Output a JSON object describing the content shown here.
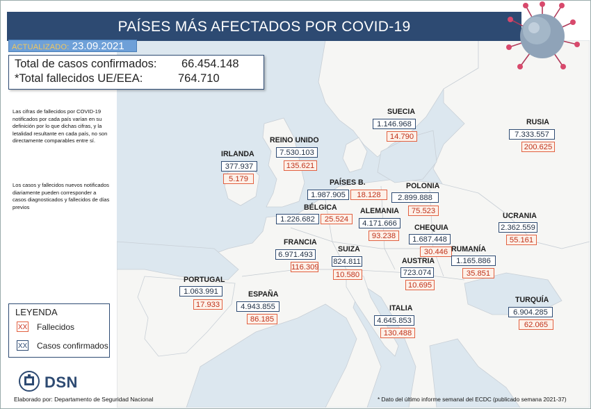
{
  "header": {
    "title": "PAÍSES MÁS AFECTADOS POR COVID-19"
  },
  "updated": {
    "label": "ACTUALIZADO:",
    "date": "23.09.2021"
  },
  "totals": {
    "cases_label": "Total de casos confirmados:",
    "cases_value": "66.454.148",
    "deaths_label": "*Total fallecidos UE/EEA:",
    "deaths_value": "764.710"
  },
  "notes": {
    "note1": "Las cifras de fallecidos por COVID-19 notificados por cada país varían en su definición por lo que dichas cifras, y la letalidad resultante en cada país, no son directamente comparables entre sí.",
    "note2": "Los casos y fallecidos nuevos notificados diariamente pueden corresponder a casos diagnosticados y fallecidos de días previos"
  },
  "legend": {
    "title": "LEYENDA",
    "sample": "XX",
    "deaths_label": "Fallecidos",
    "cases_label": "Casos confirmados"
  },
  "countries": {
    "suecia": {
      "name": "SUECIA",
      "cases": "1.146.968",
      "deaths": "14.790"
    },
    "rusia": {
      "name": "RUSIA",
      "cases": "7.333.557",
      "deaths": "200.625"
    },
    "reino_unido": {
      "name": "REINO UNIDO",
      "cases": "7.530.103",
      "deaths": "135.621"
    },
    "irlanda": {
      "name": "IRLANDA",
      "cases": "377.937",
      "deaths": "5.179"
    },
    "paises_bajos": {
      "name": "PAÍSES B.",
      "cases": "1.987.905",
      "deaths": "18.128"
    },
    "polonia": {
      "name": "POLONIA",
      "cases": "2.899.888",
      "deaths": "75.523"
    },
    "belgica": {
      "name": "BÉLGICA",
      "cases": "1.226.682",
      "deaths": "25.524"
    },
    "alemania": {
      "name": "ALEMANIA",
      "cases": "4.171.666",
      "deaths": "93.238"
    },
    "ucrania": {
      "name": "UCRANIA",
      "cases": "2.362.559",
      "deaths": "55.161"
    },
    "chequia": {
      "name": "CHEQUIA",
      "cases": "1.687.448",
      "deaths": "30.446"
    },
    "francia": {
      "name": "FRANCIA",
      "cases": "6.971.493",
      "deaths": "116.309"
    },
    "suiza": {
      "name": "SUIZA",
      "cases": "824.811",
      "deaths": "10.580"
    },
    "rumania": {
      "name": "RUMANÍA",
      "cases": "1.165.886",
      "deaths": "35.851"
    },
    "austria": {
      "name": "AUSTRIA",
      "cases": "723.074",
      "deaths": "10.695"
    },
    "portugal": {
      "name": "PORTUGAL",
      "cases": "1.063.991",
      "deaths": "17.933"
    },
    "espana": {
      "name": "ESPAÑA",
      "cases": "4.943.855",
      "deaths": "86.185"
    },
    "italia": {
      "name": "ITALIA",
      "cases": "4.645.853",
      "deaths": "130.488"
    },
    "turquia": {
      "name": "TURQUÍA",
      "cases": "6.904.285",
      "deaths": "62.065"
    }
  },
  "logo": {
    "brand": "DSN"
  },
  "footer": {
    "left": "Elaborado por: Departamento de Seguridad Nacional",
    "right": "* Dato del último informe semanal del ECDC (publicado semana 2021-37)"
  },
  "colors": {
    "header": "#2d4a72",
    "cases_border": "#2d4a72",
    "deaths_border": "#e26040",
    "deaths_text": "#c0321a",
    "sea": "#dce7ef",
    "land": "#f6f6f4"
  }
}
